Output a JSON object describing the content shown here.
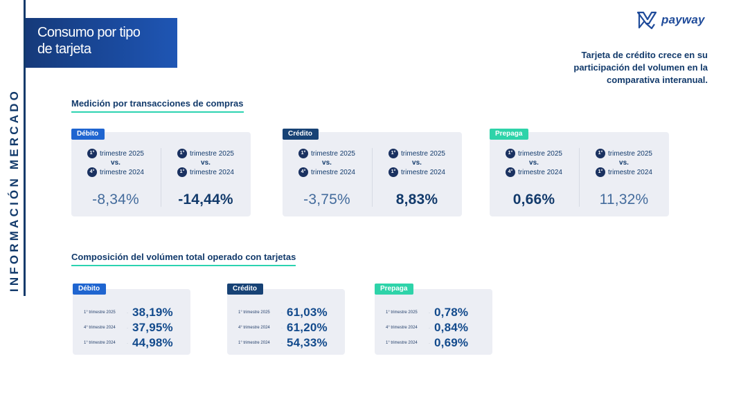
{
  "side_label": "INFORMACIÓN MERCADO",
  "title": {
    "line1": "Consumo por tipo",
    "line2": "de tarjeta"
  },
  "logo": {
    "text": "payway",
    "icon": "payway-logo-icon"
  },
  "headline": {
    "line1": "Tarjeta de crédito crece en su",
    "line2": "participación del volumen en la",
    "line3": "comparativa interanual."
  },
  "section1": {
    "title": "Medición por transacciones de compras",
    "vs": "vs.",
    "cards": [
      {
        "badge": "Débito",
        "left": {
          "n1": "1°",
          "q1": "trimestre 2025",
          "n2": "4°",
          "q2": "trimestre 2024",
          "pct": "-8,34%"
        },
        "right": {
          "n1": "1°",
          "q1": "trimestre 2025",
          "n2": "1°",
          "q2": "trimestre 2024",
          "pct": "-14,44%"
        }
      },
      {
        "badge": "Crédito",
        "left": {
          "n1": "1°",
          "q1": "trimestre 2025",
          "n2": "4°",
          "q2": "trimestre 2024",
          "pct": "-3,75%"
        },
        "right": {
          "n1": "1°",
          "q1": "trimestre 2025",
          "n2": "1°",
          "q2": "trimestre 2024",
          "pct": "8,83%"
        }
      },
      {
        "badge": "Prepaga",
        "left": {
          "n1": "1°",
          "q1": "trimestre 2025",
          "n2": "4°",
          "q2": "trimestre 2024",
          "pct": "0,66%"
        },
        "right": {
          "n1": "1°",
          "q1": "trimestre 2025",
          "n2": "1°",
          "q2": "trimestre 2024",
          "pct": "11,32%"
        }
      }
    ]
  },
  "section2": {
    "title": "Composición del volúmen total operado con tarjetas",
    "separator": "·",
    "cards": [
      {
        "badge": "Débito",
        "rows": [
          {
            "label": "1° trimestre 2025",
            "value": "38,19%"
          },
          {
            "label": "4° trimestre 2024",
            "value": "37,95%"
          },
          {
            "label": "1° trimestre 2024",
            "value": "44,98%"
          }
        ]
      },
      {
        "badge": "Crédito",
        "rows": [
          {
            "label": "1° trimestre 2025",
            "value": "61,03%"
          },
          {
            "label": "4° trimestre 2024",
            "value": "61,20%"
          },
          {
            "label": "1° trimestre 2024",
            "value": "54,33%"
          }
        ]
      },
      {
        "badge": "Prepaga",
        "rows": [
          {
            "label": "1° trimestre 2025",
            "value": "0,78%"
          },
          {
            "label": "4° trimestre 2024",
            "value": "0,84%"
          },
          {
            "label": "1° trimestre 2024",
            "value": "0,69%"
          }
        ]
      }
    ]
  }
}
